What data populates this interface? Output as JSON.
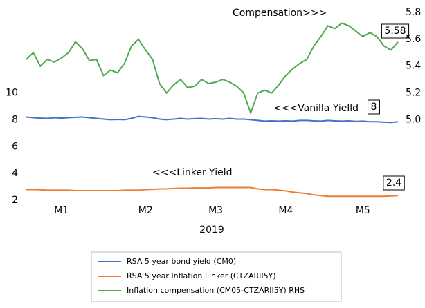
{
  "chart_data": {
    "type": "line",
    "categories": [
      null,
      null,
      null,
      null,
      null,
      "M1",
      null,
      null,
      null,
      null,
      null,
      null,
      null,
      null,
      null,
      null,
      null,
      "M2",
      null,
      null,
      null,
      null,
      null,
      null,
      null,
      null,
      null,
      "M3",
      null,
      null,
      null,
      null,
      null,
      null,
      null,
      null,
      null,
      "M4",
      null,
      null,
      null,
      null,
      null,
      null,
      null,
      null,
      null,
      null,
      "M5",
      null,
      null,
      null,
      null,
      null
    ],
    "x_label": "2019",
    "ylim": [
      2,
      16
    ],
    "yticks": [
      2,
      4,
      6,
      8,
      10
    ],
    "y2lim": [
      4.4,
      5.8
    ],
    "y2ticks": [
      {
        "value": 5,
        "label": "5.0"
      },
      5.2,
      5.4,
      5.6,
      5.8
    ],
    "series": [
      {
        "name": "RSA 5 year bond yield (CM0)",
        "color": "#4472c4",
        "values": [
          8.2,
          8.15,
          8.12,
          8.1,
          8.15,
          8.12,
          8.15,
          8.18,
          8.2,
          8.15,
          8.1,
          8.05,
          8.0,
          8.02,
          8.0,
          8.1,
          8.25,
          8.2,
          8.15,
          8.05,
          8.0,
          8.05,
          8.1,
          8.05,
          8.08,
          8.1,
          8.05,
          8.08,
          8.05,
          8.1,
          8.05,
          8.05,
          8.0,
          7.95,
          7.9,
          7.92,
          7.9,
          7.92,
          7.9,
          7.95,
          7.95,
          7.92,
          7.9,
          7.95,
          7.92,
          7.9,
          7.92,
          7.88,
          7.9,
          7.85,
          7.85,
          7.82,
          7.8,
          7.85
        ]
      },
      {
        "name": "RSA 5 year Inflation Linker (CTZARII5Y)",
        "color": "#ed7d31",
        "values": [
          2.8,
          2.8,
          2.78,
          2.75,
          2.75,
          2.75,
          2.75,
          2.72,
          2.72,
          2.72,
          2.72,
          2.72,
          2.72,
          2.72,
          2.75,
          2.75,
          2.75,
          2.8,
          2.82,
          2.85,
          2.85,
          2.88,
          2.9,
          2.9,
          2.92,
          2.92,
          2.92,
          2.95,
          2.95,
          2.95,
          2.95,
          2.95,
          2.95,
          2.85,
          2.8,
          2.8,
          2.75,
          2.7,
          2.6,
          2.55,
          2.5,
          2.4,
          2.35,
          2.3,
          2.3,
          2.3,
          2.3,
          2.3,
          2.3,
          2.3,
          2.3,
          2.3,
          2.32,
          2.35
        ]
      },
      {
        "name": "Inflation compensation (CM05-CTZARII5Y)  RHS",
        "color": "#4ea84e",
        "axis": "y2",
        "values": [
          5.45,
          5.5,
          5.4,
          5.45,
          5.43,
          5.46,
          5.5,
          5.58,
          5.53,
          5.44,
          5.45,
          5.33,
          5.37,
          5.35,
          5.42,
          5.55,
          5.6,
          5.52,
          5.45,
          5.27,
          5.2,
          5.26,
          5.3,
          5.24,
          5.25,
          5.3,
          5.27,
          5.28,
          5.3,
          5.28,
          5.25,
          5.2,
          5.05,
          5.2,
          5.22,
          5.2,
          5.26,
          5.33,
          5.38,
          5.42,
          5.45,
          5.55,
          5.62,
          5.7,
          5.68,
          5.72,
          5.7,
          5.66,
          5.62,
          5.65,
          5.62,
          5.55,
          5.52,
          5.58
        ]
      }
    ],
    "annotations": [
      "Compensation>>>",
      "<<<Vanilla Yielld",
      "<<<Linker Yield",
      "5.58",
      "8",
      "2.4"
    ]
  }
}
